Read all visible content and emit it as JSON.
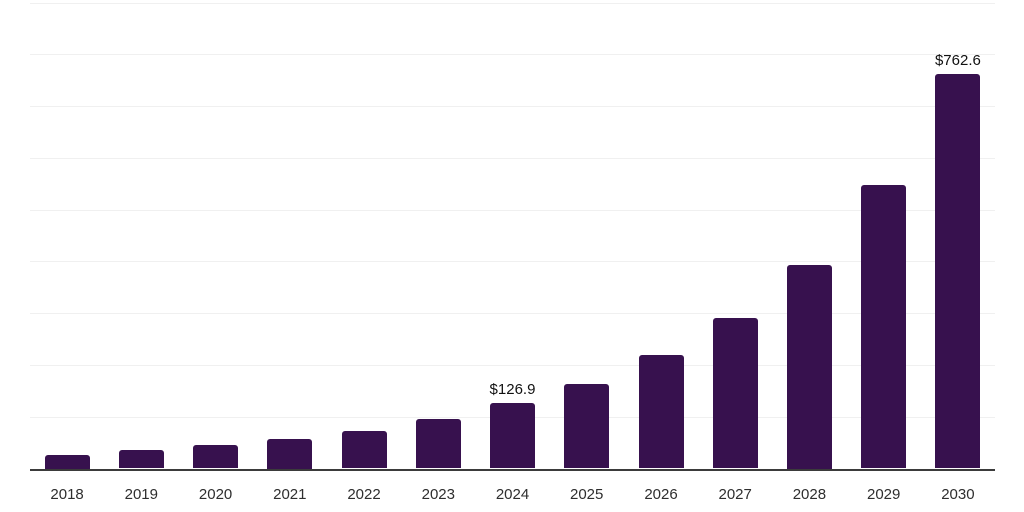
{
  "chart_data": {
    "type": "bar",
    "title": "",
    "xlabel": "",
    "ylabel": "",
    "categories": [
      "2018",
      "2019",
      "2020",
      "2021",
      "2022",
      "2023",
      "2024",
      "2025",
      "2026",
      "2027",
      "2028",
      "2029",
      "2030"
    ],
    "values": [
      27,
      35,
      46,
      57,
      73,
      96,
      126.9,
      163,
      219,
      290,
      393,
      547,
      762.6
    ],
    "bar_labels": {
      "2024": "$126.9",
      "2030": "$762.6"
    },
    "ylim": [
      0,
      900
    ],
    "ytick_interval": 100,
    "grid": true,
    "legend": false,
    "y_axis_labels_visible": false,
    "colors": {
      "bar": "#37114e",
      "gridline": "#f0f0f0",
      "axis_line": "#3b3b3b",
      "bar_label_text": "#111111",
      "tick_label_text": "#2e2e2e",
      "background": "#ffffff"
    }
  }
}
